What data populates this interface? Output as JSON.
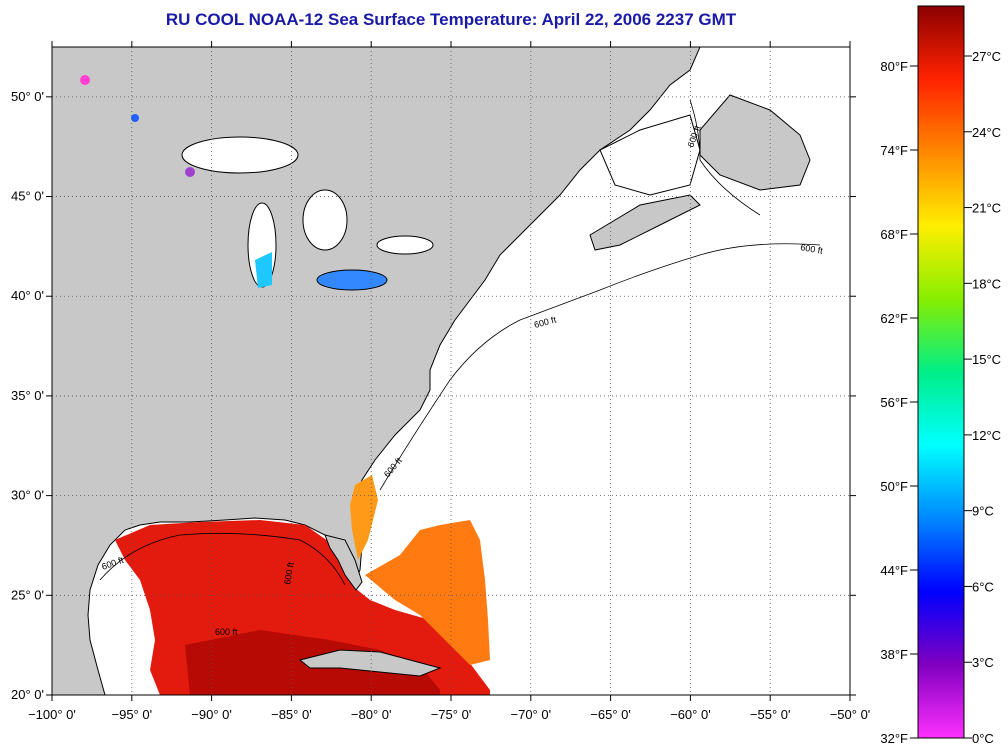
{
  "title": "RU COOL  NOAA-12  Sea Surface Temperature:  April 22, 2006 2237 GMT",
  "map": {
    "lon_range": [
      -100,
      -50
    ],
    "lat_range": [
      20,
      52.5
    ],
    "x_ticks": [
      "−100° 0'",
      "−95° 0'",
      "−90° 0'",
      "−85° 0'",
      "−80° 0'",
      "−75° 0'",
      "−70° 0'",
      "−65° 0'",
      "−60° 0'",
      "−55° 0'",
      "−50° 0'"
    ],
    "y_ticks": [
      "50° 0'",
      "45° 0'",
      "40° 0'",
      "35° 0'",
      "30° 0'",
      "25° 0'",
      "20° 0'"
    ],
    "contour_label": "600 ft",
    "land_color": "#c8c8c8",
    "ocean_nodata_color": "#ffffff"
  },
  "colorbar": {
    "fahrenheit": [
      "80°F",
      "74°F",
      "68°F",
      "62°F",
      "56°F",
      "50°F",
      "44°F",
      "38°F",
      "32°F"
    ],
    "celsius": [
      "27°C",
      "24°C",
      "21°C",
      "18°C",
      "15°C",
      "12°C",
      "9°C",
      "6°C",
      "3°C",
      "0°C"
    ],
    "colors": [
      "#8b0000",
      "#ff2200",
      "#ff8800",
      "#ffee00",
      "#88ee00",
      "#00ee88",
      "#00ffff",
      "#0088ff",
      "#0000ff",
      "#8000c0",
      "#ff30ff"
    ]
  }
}
